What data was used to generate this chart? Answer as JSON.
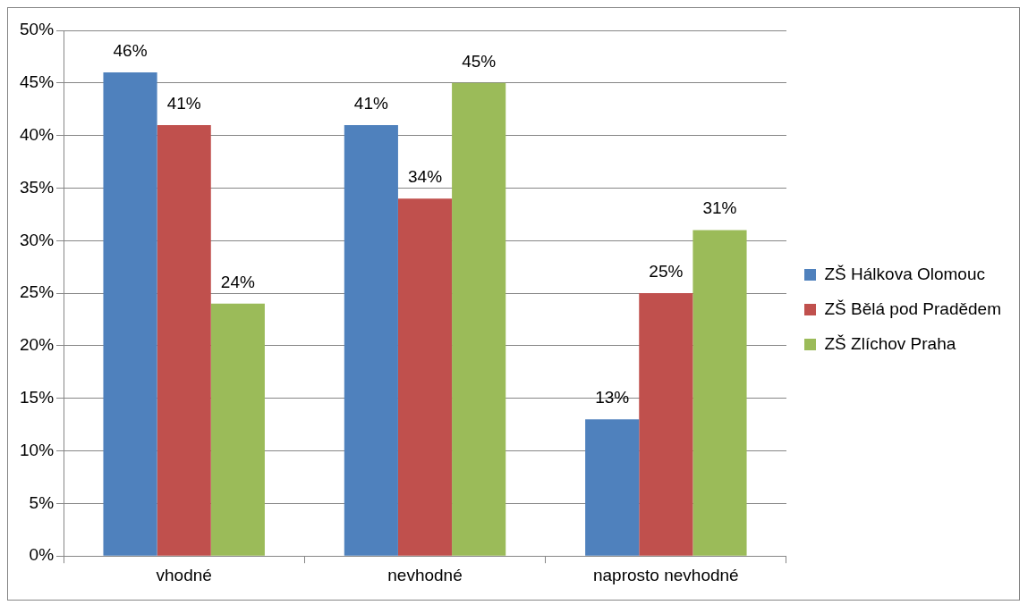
{
  "chart_data": {
    "type": "bar",
    "categories": [
      "vhodné",
      "nevhodné",
      "naprosto nevhodné"
    ],
    "series": [
      {
        "name": "ZŠ Hálkova Olomouc",
        "color": "#4f81bd",
        "values": [
          46,
          41,
          13
        ],
        "value_labels": [
          "46%",
          "41%",
          "13%"
        ]
      },
      {
        "name": "ZŠ Bělá pod Pradědem",
        "color": "#c0504d",
        "values": [
          41,
          34,
          25
        ],
        "value_labels": [
          "41%",
          "34%",
          "25%"
        ]
      },
      {
        "name": "ZŠ Zlíchov Praha",
        "color": "#9bbb59",
        "values": [
          24,
          45,
          31
        ],
        "value_labels": [
          "24%",
          "45%",
          "31%"
        ]
      }
    ],
    "ylim": [
      0,
      50
    ],
    "yticks": [
      {
        "value": 0,
        "label": "0%"
      },
      {
        "value": 5,
        "label": "5%"
      },
      {
        "value": 10,
        "label": "10%"
      },
      {
        "value": 15,
        "label": "15%"
      },
      {
        "value": 20,
        "label": "20%"
      },
      {
        "value": 25,
        "label": "25%"
      },
      {
        "value": 30,
        "label": "30%"
      },
      {
        "value": 35,
        "label": "35%"
      },
      {
        "value": 40,
        "label": "40%"
      },
      {
        "value": 45,
        "label": "45%"
      },
      {
        "value": 50,
        "label": "50%"
      }
    ],
    "grid": "y",
    "legend": "right"
  }
}
